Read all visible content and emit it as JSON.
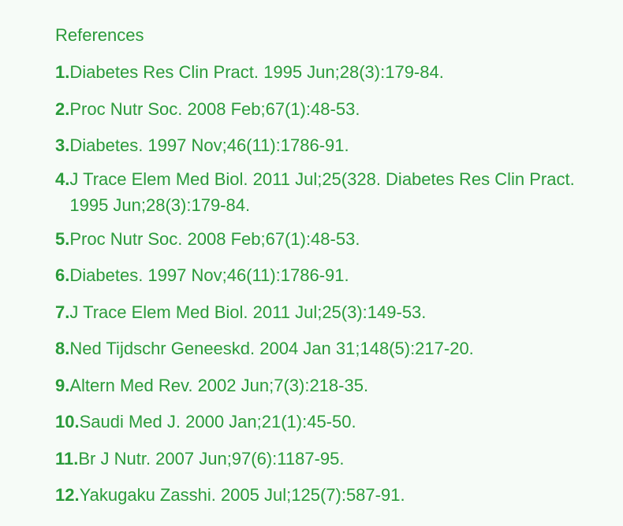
{
  "heading": "References",
  "colors": {
    "text": "#2a9a3a",
    "background": "#f6fbf7"
  },
  "references": [
    {
      "num": "1.",
      "text": "Diabetes Res Clin Pract. 1995 Jun;28(3):179-84."
    },
    {
      "num": "2.",
      "text": "Proc Nutr Soc. 2008 Feb;67(1):48-53."
    },
    {
      "num": "3.",
      "text": "Diabetes. 1997 Nov;46(11):1786-91."
    },
    {
      "num": "4.",
      "text": "J Trace Elem Med Biol. 2011 Jul;25(328. Diabetes Res Clin Pract. 1995 Jun;28(3):179-84."
    },
    {
      "num": "5.",
      "text": "Proc Nutr Soc. 2008 Feb;67(1):48-53."
    },
    {
      "num": "6.",
      "text": "Diabetes. 1997 Nov;46(11):1786-91."
    },
    {
      "num": "7.",
      "text": "J Trace Elem Med Biol. 2011 Jul;25(3):149-53."
    },
    {
      "num": "8.",
      "text": "Ned Tijdschr Geneeskd. 2004 Jan 31;148(5):217-20."
    },
    {
      "num": "9.",
      "text": "Altern Med Rev. 2002 Jun;7(3):218-35."
    },
    {
      "num": "10.",
      "text": "Saudi Med J. 2000 Jan;21(1):45-50."
    },
    {
      "num": "11.",
      "text": "Br J Nutr. 2007 Jun;97(6):1187-95."
    },
    {
      "num": "12.",
      "text": "Yakugaku Zasshi. 2005 Jul;125(7):587-91."
    }
  ]
}
